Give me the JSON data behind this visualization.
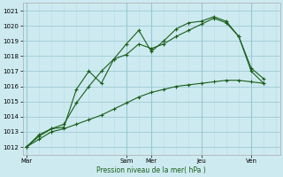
{
  "xlabel": "Pression niveau de la mer( hPa )",
  "bg_color": "#cdeaf0",
  "grid_color_minor": "#b8dde4",
  "grid_color_major": "#99c8d0",
  "line_color": "#1a5e1a",
  "ylim": [
    1011.5,
    1021.5
  ],
  "xlim": [
    -0.3,
    20.3
  ],
  "day_labels": [
    "Mar",
    "Sam",
    "Mer",
    "Jeu",
    "Ven"
  ],
  "day_positions": [
    0,
    8,
    10,
    14,
    18
  ],
  "yticks": [
    1012,
    1013,
    1014,
    1015,
    1016,
    1017,
    1018,
    1019,
    1020,
    1021
  ],
  "line1_x": [
    0,
    1,
    2,
    3,
    4,
    5,
    6,
    7,
    8,
    9,
    10,
    11,
    12,
    13,
    14,
    15,
    16,
    17,
    18,
    19
  ],
  "line1_y": [
    1012.0,
    1012.5,
    1013.0,
    1013.2,
    1013.5,
    1013.8,
    1014.1,
    1014.5,
    1014.9,
    1015.3,
    1015.6,
    1015.8,
    1016.0,
    1016.1,
    1016.2,
    1016.3,
    1016.4,
    1016.4,
    1016.3,
    1016.2
  ],
  "line2_x": [
    0,
    1,
    2,
    3,
    4,
    5,
    6,
    7,
    8,
    9,
    10,
    11,
    12,
    13,
    14,
    15,
    16,
    17,
    18,
    19
  ],
  "line2_y": [
    1012.0,
    1012.7,
    1013.2,
    1013.5,
    1014.9,
    1016.0,
    1017.0,
    1017.8,
    1018.1,
    1018.8,
    1018.5,
    1018.8,
    1019.3,
    1019.7,
    1020.1,
    1020.5,
    1020.2,
    1019.3,
    1017.0,
    1016.2
  ],
  "line3_x": [
    0,
    1,
    2,
    3,
    4,
    5,
    6,
    7,
    8,
    9,
    10,
    11,
    12,
    13,
    14,
    15,
    16,
    17,
    18,
    19
  ],
  "line3_y": [
    1012.0,
    1012.8,
    1013.2,
    1013.3,
    1015.8,
    1017.0,
    1016.2,
    1017.8,
    1018.8,
    1019.7,
    1018.3,
    1019.0,
    1019.8,
    1020.2,
    1020.3,
    1020.6,
    1020.3,
    1019.3,
    1017.2,
    1016.5
  ]
}
